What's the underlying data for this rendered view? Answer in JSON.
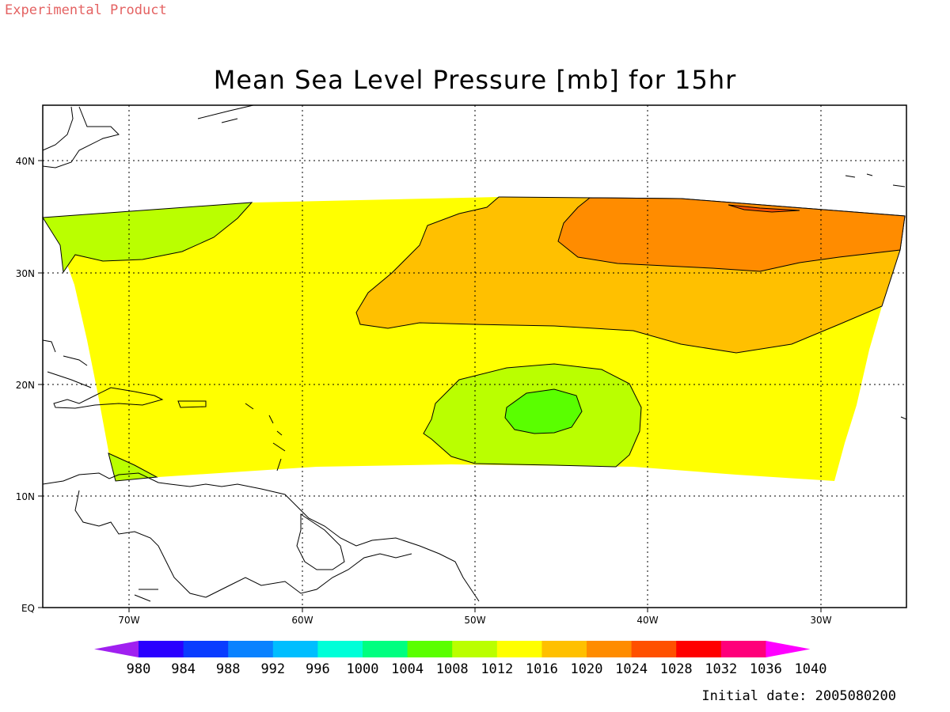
{
  "header": {
    "badge": "Experimental Product",
    "title": "Mean Sea Level Pressure [mb] for 15hr"
  },
  "footer": {
    "initial_date": "Initial date: 2005080200"
  },
  "map": {
    "lon_labels": [
      "70W",
      "60W",
      "50W",
      "40W",
      "30W"
    ],
    "lat_labels": [
      "40N",
      "30N",
      "20N",
      "10N",
      "EQ"
    ],
    "grid": true
  },
  "colorbar": {
    "labels": [
      "980",
      "984",
      "988",
      "992",
      "996",
      "1000",
      "1004",
      "1008",
      "1012",
      "1016",
      "1020",
      "1024",
      "1028",
      "1032",
      "1036",
      "1040"
    ],
    "colors": [
      "#a020f0",
      "#2a00ff",
      "#0a3cff",
      "#0a82ff",
      "#00beff",
      "#00ffd8",
      "#00ff80",
      "#5aff00",
      "#baff00",
      "#ffff00",
      "#ffc000",
      "#ff8c00",
      "#ff5000",
      "#ff0000",
      "#ff007a",
      "#ff00ff"
    ]
  }
}
